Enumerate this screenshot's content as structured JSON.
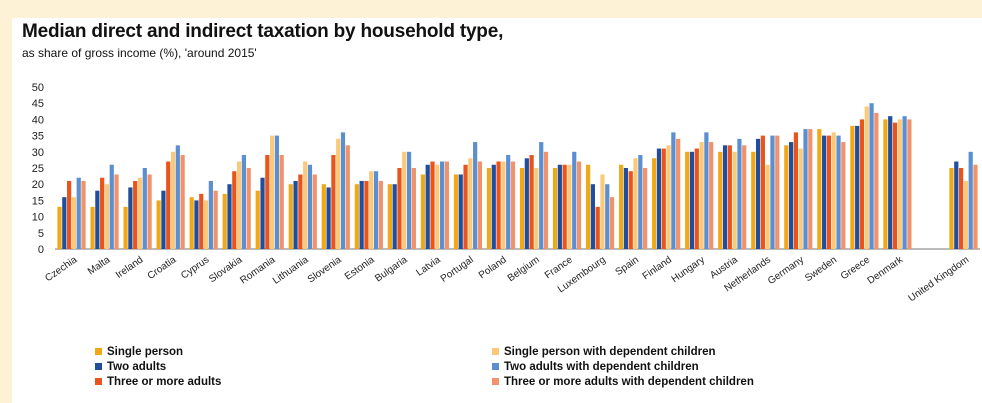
{
  "title": "Median direct and indirect taxation by household type,",
  "subtitle": "as share of gross income (%), 'around 2015'",
  "chart_data": {
    "type": "bar",
    "title": "Median direct and indirect taxation by household type,",
    "subtitle": "as share of gross income (%), 'around 2015'",
    "xlabel": "",
    "ylabel": "",
    "ylim": [
      0,
      50
    ],
    "yticks": [
      0,
      5,
      10,
      15,
      20,
      25,
      30,
      35,
      40,
      45,
      50
    ],
    "grid": false,
    "legend_position": "bottom",
    "categories": [
      "Czechia",
      "Malta",
      "Ireland",
      "Croatia",
      "Cyprus",
      "Slovakia",
      "Romania",
      "Lithuania",
      "Slovenia",
      "Estonia",
      "Bulgaria",
      "Latvia",
      "Portugal",
      "Poland",
      "Belgium",
      "France",
      "Luxembourg",
      "Spain",
      "Finland",
      "Hungary",
      "Austria",
      "Netherlands",
      "Germany",
      "Sweden",
      "Greece",
      "Denmark",
      "",
      "United Kingdom"
    ],
    "series": [
      {
        "name": "Single person",
        "color": "#f0a818",
        "values": [
          13,
          13,
          13,
          15,
          16,
          17,
          18,
          20,
          20,
          20,
          20,
          23,
          23,
          25,
          25,
          25,
          26,
          26,
          28,
          30,
          30,
          30,
          32,
          37,
          38,
          40,
          null,
          25
        ]
      },
      {
        "name": "Two adults",
        "color": "#1f4e9c",
        "values": [
          16,
          18,
          19,
          18,
          15,
          20,
          22,
          21,
          19,
          21,
          20,
          26,
          23,
          26,
          28,
          26,
          20,
          25,
          31,
          30,
          32,
          34,
          33,
          35,
          38,
          41,
          null,
          27
        ]
      },
      {
        "name": "Three or more adults",
        "color": "#e8541c",
        "values": [
          21,
          22,
          21,
          27,
          17,
          24,
          29,
          23,
          29,
          21,
          25,
          27,
          26,
          27,
          29,
          26,
          13,
          24,
          31,
          31,
          32,
          35,
          36,
          35,
          40,
          39,
          null,
          25
        ]
      },
      {
        "name": "Single person with dependent children",
        "color": "#fbc97a",
        "values": [
          16,
          20,
          22,
          30,
          15,
          27,
          35,
          27,
          34,
          24,
          30,
          26,
          28,
          27,
          25,
          26,
          23,
          28,
          32,
          33,
          30,
          26,
          31,
          36,
          44,
          40,
          null,
          21
        ]
      },
      {
        "name": "Two adults with dependent children",
        "color": "#5b8fd0",
        "values": [
          22,
          26,
          25,
          32,
          21,
          29,
          35,
          26,
          36,
          24,
          30,
          27,
          33,
          29,
          33,
          30,
          20,
          29,
          36,
          36,
          34,
          35,
          37,
          35,
          45,
          41,
          null,
          30
        ]
      },
      {
        "name": "Three or more adults with dependent children",
        "color": "#f0926b",
        "values": [
          21,
          23,
          23,
          29,
          18,
          25,
          29,
          23,
          32,
          21,
          25,
          27,
          27,
          27,
          30,
          27,
          16,
          25,
          34,
          33,
          32,
          35,
          37,
          33,
          42,
          40,
          null,
          26
        ]
      }
    ]
  }
}
